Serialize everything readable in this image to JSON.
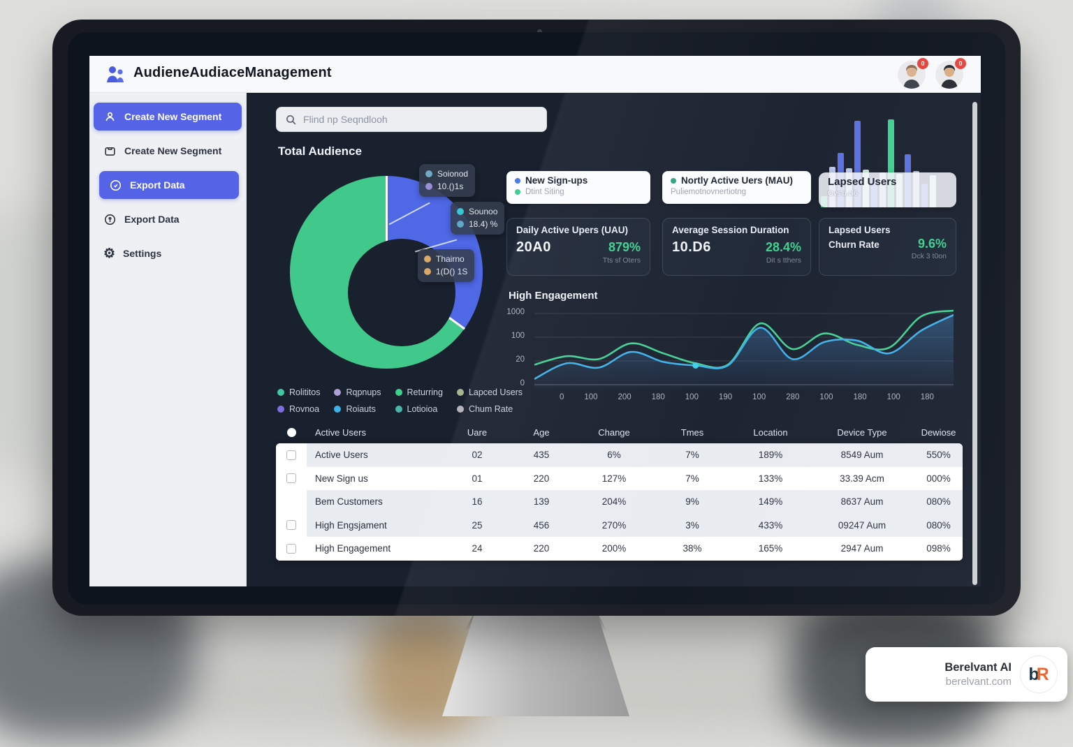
{
  "app": {
    "title": "AudieneAudiaceManagement"
  },
  "header": {
    "avatar_badges": [
      "0",
      "0"
    ]
  },
  "sidebar": {
    "items": [
      {
        "label": "Create New Segment",
        "icon": "person",
        "active": true
      },
      {
        "label": "Create New Segment",
        "icon": "mail",
        "active": false
      },
      {
        "label": "Export Data",
        "icon": "clock",
        "active": true
      },
      {
        "label": "Export Data",
        "icon": "person-circle",
        "active": false
      },
      {
        "label": "Settings",
        "icon": "gear",
        "active": false
      }
    ]
  },
  "search": {
    "placeholder": "Flind np Seqndlooh"
  },
  "overview": {
    "section_title": "Total Audience",
    "line_chart_title": "High Engagement"
  },
  "donut_tooltips": [
    {
      "title": "Soionod",
      "value": "10.()1s",
      "title_dot": "#6fa9c4",
      "value_dot": "#9a8fd6"
    },
    {
      "title": "Sounoo",
      "value": "18.4) %",
      "title_dot": "#36c6d4",
      "value_dot": "#5fa8c8"
    },
    {
      "title": "Thairno",
      "value": "1(D() 1S",
      "title_dot": "#d9a869",
      "value_dot": "#d9a869"
    }
  ],
  "legend": {
    "items": [
      {
        "label": "Rolititos",
        "color": "#3fc9a0"
      },
      {
        "label": "Rqpnups",
        "color": "#b09fd8"
      },
      {
        "label": "Returring",
        "color": "#3ecf8e"
      },
      {
        "label": "Lapced Users",
        "color": "#a8b48e"
      },
      {
        "label": "Rovnoa",
        "color": "#7d6fe0"
      },
      {
        "label": "Roiauts",
        "color": "#3bb3e8"
      },
      {
        "label": "Lotioioa",
        "color": "#4db6ac"
      },
      {
        "label": "Chum Rate",
        "color": "#b7b3bd"
      }
    ]
  },
  "summary_cards": [
    {
      "title": "New Sign-ups",
      "subtitle": "Dtint Siting",
      "dot": "#4a7de8",
      "sub_dot": "#3ecf8e"
    },
    {
      "title": "Nortly Active Uers (MAU)",
      "subtitle": "Puliemotnovnertiotng",
      "dot": "#2ba37d"
    },
    {
      "title": "Lapsed Users",
      "subtitle": "Ovs'u.cl6"
    }
  ],
  "kpi_cards": [
    {
      "title": "Daily Active Upers (UAU)",
      "value": "20A0",
      "delta": "879%",
      "note": "Tts sf Oters"
    },
    {
      "title": "Average Session Duration",
      "value": "10.D6",
      "delta": "28.4%",
      "note": "Dit s tthers"
    },
    {
      "title_line1": "Lapsed Users",
      "title_line2": "Churn Rate",
      "delta": "9.6%",
      "note": "Dck 3 t0on"
    }
  ],
  "table": {
    "headers": [
      "Active Users",
      "Uare",
      "Age",
      "Change",
      "Tmes",
      "Location",
      "Device Type",
      "Dewiose"
    ],
    "rows": [
      {
        "cells": [
          "Active Users",
          "02",
          "435",
          "6%",
          "7%",
          "189%",
          "8549 Aum",
          "550%"
        ]
      },
      {
        "cells": [
          "New Sign us",
          "01",
          "220",
          "127%",
          "7%",
          "133%",
          "33.39 Acm",
          "000%"
        ]
      },
      {
        "cells": [
          "Bem Customers",
          "16",
          "139",
          "204%",
          "9%",
          "149%",
          "8637 Aum",
          "080%"
        ]
      },
      {
        "cells": [
          "High Engsjament",
          "25",
          "456",
          "270%",
          "3%",
          "433%",
          "09247 Aum",
          "080%"
        ]
      },
      {
        "cells": [
          "High Engagement",
          "24",
          "220",
          "200%",
          "38%",
          "165%",
          "2947 Aum",
          "098%"
        ]
      }
    ]
  },
  "brand_badge": {
    "name": "Berelvant AI",
    "domain": "berelvant.com",
    "monogram_b": "b",
    "monogram_r": "R"
  },
  "chart_data": [
    {
      "type": "pie",
      "title": "Total Audience",
      "donut": true,
      "slices": [
        {
          "label": "blue-segment",
          "value": 35,
          "color": "#4e68e6"
        },
        {
          "label": "green-segment",
          "value": 65,
          "color": "#41c98b"
        }
      ]
    },
    {
      "type": "bar",
      "title": "Lapsed Users",
      "values": [
        16,
        58,
        78,
        56,
        124,
        54,
        42,
        50,
        126,
        48,
        76,
        52,
        34,
        46
      ],
      "colors": [
        "#3ecf8e",
        "#b8c4f2",
        "#5a6fe0",
        "#c3c9f0",
        "#5a6fe0",
        "#cde8da",
        "#5a6fe0",
        "#c3c9f0",
        "#3ecf8e",
        "#cde8da",
        "#5a6fe0",
        "#b8c4f2",
        "#5a6fe0",
        "#cde8da"
      ],
      "ymax": 130
    },
    {
      "type": "line",
      "title": "High Engagement",
      "y_tick_labels": [
        "1000",
        "100",
        "20",
        "0"
      ],
      "x_tick_labels": [
        "0",
        "100",
        "200",
        "180",
        "100",
        "190",
        "100",
        "280",
        "100",
        "180",
        "100",
        "180"
      ],
      "value_scale": "percent-of-plot-height",
      "series": [
        {
          "name": "green",
          "color": "#44cf92",
          "values": [
            28,
            40,
            36,
            58,
            44,
            30,
            28,
            86,
            50,
            72,
            56,
            52,
            96,
            104
          ]
        },
        {
          "name": "blue",
          "color": "#3fb0e8",
          "values": [
            8,
            30,
            24,
            46,
            32,
            27,
            27,
            80,
            36,
            60,
            62,
            44,
            76,
            98
          ]
        }
      ],
      "marker": {
        "series": 1,
        "index": 5,
        "color": "#3fd0e8"
      }
    }
  ]
}
